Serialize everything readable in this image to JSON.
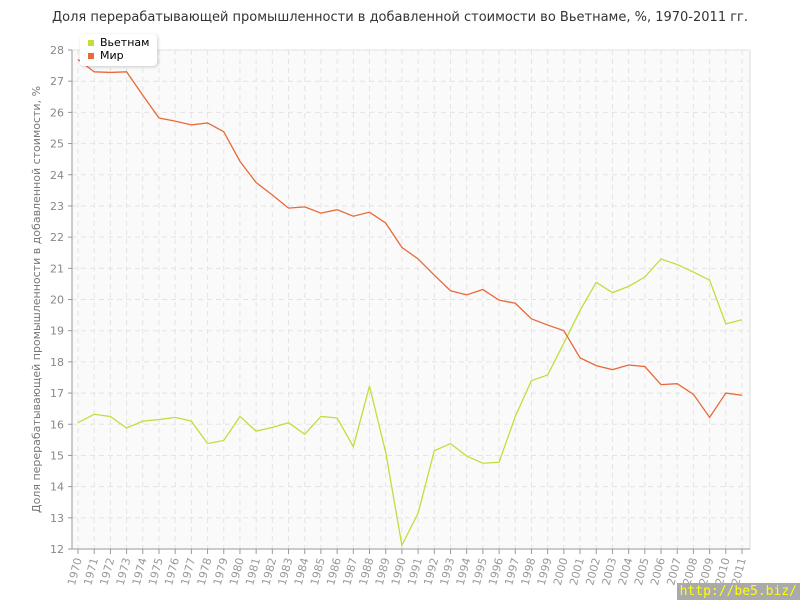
{
  "chart_data": {
    "type": "line",
    "title": "Доля перерабатывающей промышленности в добавленной стоимости во Вьетнаме, %, 1970-2011 гг.",
    "xlabel": "",
    "ylabel": "Доля перерабатывающей промышленности в добавленной стоимости, %",
    "ylim": [
      12,
      28
    ],
    "yticks": [
      12,
      13,
      14,
      15,
      16,
      17,
      18,
      19,
      20,
      21,
      22,
      23,
      24,
      25,
      26,
      27,
      28
    ],
    "grid": true,
    "legend": "top-left",
    "x": [
      1970,
      1971,
      1972,
      1973,
      1974,
      1975,
      1976,
      1977,
      1978,
      1979,
      1980,
      1981,
      1982,
      1983,
      1984,
      1985,
      1986,
      1987,
      1988,
      1989,
      1990,
      1991,
      1992,
      1993,
      1994,
      1995,
      1996,
      1997,
      1998,
      1999,
      2000,
      2001,
      2002,
      2003,
      2004,
      2005,
      2006,
      2007,
      2008,
      2009,
      2010,
      2011
    ],
    "series": [
      {
        "name": "Вьетнам",
        "color": "#c3dd3a",
        "values": [
          16.05,
          16.32,
          16.25,
          15.88,
          16.1,
          16.15,
          16.22,
          16.1,
          15.38,
          15.48,
          16.25,
          15.78,
          15.9,
          16.05,
          15.68,
          16.25,
          16.2,
          15.28,
          17.22,
          15.1,
          12.12,
          13.15,
          15.15,
          15.38,
          14.98,
          14.75,
          14.78,
          16.25,
          17.4,
          17.58,
          18.6,
          19.65,
          20.55,
          20.22,
          20.42,
          20.72,
          21.3,
          21.12,
          20.88,
          20.62,
          19.22,
          19.35
        ]
      },
      {
        "name": "Мир",
        "color": "#e8693a",
        "values": [
          27.7,
          27.3,
          27.28,
          27.3,
          26.55,
          25.82,
          25.72,
          25.6,
          25.66,
          25.38,
          24.43,
          23.75,
          23.35,
          22.93,
          22.97,
          22.77,
          22.88,
          22.67,
          22.8,
          22.45,
          21.67,
          21.3,
          20.78,
          20.28,
          20.15,
          20.32,
          19.98,
          19.88,
          19.38,
          19.18,
          19.0,
          18.13,
          17.88,
          17.75,
          17.9,
          17.85,
          17.27,
          17.3,
          16.96,
          16.22,
          17.0,
          16.93
        ]
      }
    ]
  },
  "watermark": "http://be5.biz/"
}
